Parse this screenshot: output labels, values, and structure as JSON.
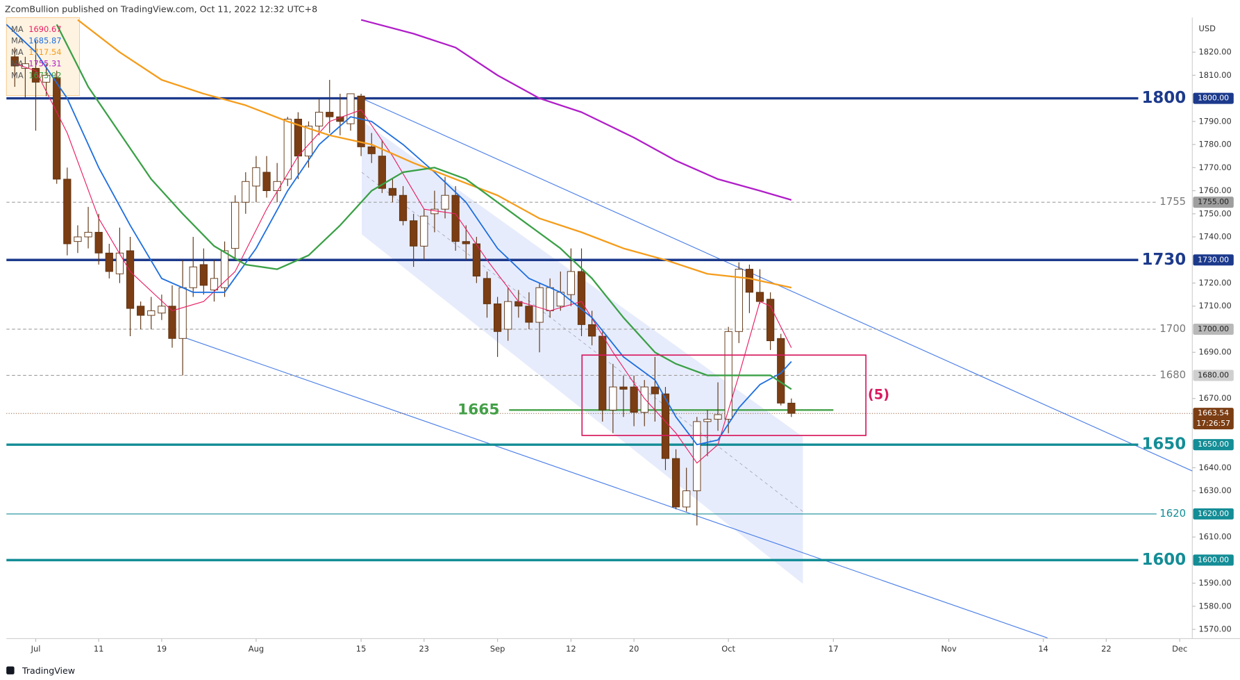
{
  "chart_data": {
    "type": "candlestick",
    "header": "ZcomBullion published on TradingView.com, Oct 11, 2022 12:32 UTC+8",
    "currency": "USD",
    "brand": "TradingView",
    "xlim": [
      -2.8,
      110.2
    ],
    "ylim": [
      1566,
      1835
    ],
    "xticks": [
      {
        "value": 0,
        "label": "Jul"
      },
      {
        "value": 6,
        "label": "11"
      },
      {
        "value": 12,
        "label": "19"
      },
      {
        "value": 21,
        "label": "Aug"
      },
      {
        "value": 31,
        "label": "15"
      },
      {
        "value": 37,
        "label": "23"
      },
      {
        "value": 44,
        "label": "Sep"
      },
      {
        "value": 51,
        "label": "12"
      },
      {
        "value": 57,
        "label": "20"
      },
      {
        "value": 66,
        "label": "Oct"
      },
      {
        "value": 76,
        "label": "17"
      },
      {
        "value": 87,
        "label": "Nov"
      },
      {
        "value": 96,
        "label": "14"
      },
      {
        "value": 102,
        "label": "22"
      },
      {
        "value": 109,
        "label": "Dec"
      }
    ],
    "yticks": [
      {
        "value": 1570,
        "label": "1570.00"
      },
      {
        "value": 1580,
        "label": "1580.00"
      },
      {
        "value": 1590,
        "label": "1590.00"
      },
      {
        "value": 1610,
        "label": "1610.00"
      },
      {
        "value": 1630,
        "label": "1630.00"
      },
      {
        "value": 1640,
        "label": "1640.00"
      },
      {
        "value": 1670,
        "label": "1670.00"
      },
      {
        "value": 1690,
        "label": "1690.00"
      },
      {
        "value": 1710,
        "label": "1710.00"
      },
      {
        "value": 1720,
        "label": "1720.00"
      },
      {
        "value": 1740,
        "label": "1740.00"
      },
      {
        "value": 1750,
        "label": "1750.00"
      },
      {
        "value": 1760,
        "label": "1760.00"
      },
      {
        "value": 1770,
        "label": "1770.00"
      },
      {
        "value": 1780,
        "label": "1780.00"
      },
      {
        "value": 1790,
        "label": "1790.00"
      },
      {
        "value": 1810,
        "label": "1810.00"
      },
      {
        "value": 1820,
        "label": "1820.00"
      }
    ],
    "up_color": "#ffffff",
    "down_color": "#7b3d13",
    "wick_color": "#5d3210",
    "candles": {
      "x": [
        -2,
        -1,
        0,
        1,
        2,
        3,
        4,
        5,
        6,
        7,
        8,
        9,
        10,
        11,
        12,
        13,
        14,
        15,
        16,
        17,
        18,
        19,
        20,
        21,
        22,
        23,
        24,
        25,
        26,
        27,
        28,
        29,
        30,
        31,
        32,
        33,
        34,
        35,
        36,
        37,
        38,
        39,
        40,
        41,
        42,
        43,
        44,
        45,
        46,
        47,
        48,
        49,
        50,
        51,
        52,
        53,
        54,
        55,
        56,
        57,
        58,
        59,
        60,
        61,
        62,
        63,
        64,
        65,
        66,
        67,
        68,
        69,
        70,
        71,
        72
      ],
      "open": [
        1818,
        1813,
        1813,
        1807,
        1809,
        1765,
        1738,
        1740,
        1742,
        1733,
        1724,
        1734,
        1710,
        1706,
        1707,
        1710,
        1696,
        1718,
        1728,
        1717,
        1718,
        1735,
        1755,
        1762,
        1768,
        1760,
        1765,
        1791,
        1775,
        1788,
        1794,
        1792,
        1789,
        1801,
        1779,
        1775,
        1761,
        1758,
        1747,
        1736,
        1750,
        1752,
        1758,
        1738,
        1737,
        1722,
        1711,
        1700,
        1712,
        1710,
        1703,
        1708,
        1710,
        1715,
        1725,
        1702,
        1697,
        1665,
        1675,
        1675,
        1664,
        1675,
        1672,
        1644,
        1623,
        1630,
        1660,
        1661,
        1661,
        1699,
        1726,
        1716,
        1713,
        1696,
        1668
      ],
      "high": [
        1822,
        1818,
        1825,
        1815,
        1812,
        1770,
        1745,
        1753,
        1750,
        1737,
        1744,
        1740,
        1712,
        1714,
        1715,
        1719,
        1730,
        1740,
        1735,
        1730,
        1738,
        1758,
        1768,
        1775,
        1775,
        1772,
        1792,
        1794,
        1790,
        1800,
        1808,
        1802,
        1802,
        1802,
        1785,
        1782,
        1765,
        1762,
        1750,
        1752,
        1760,
        1766,
        1762,
        1745,
        1740,
        1725,
        1714,
        1718,
        1717,
        1716,
        1720,
        1722,
        1725,
        1735,
        1735,
        1708,
        1699,
        1685,
        1680,
        1680,
        1678,
        1688,
        1675,
        1648,
        1640,
        1662,
        1665,
        1677,
        1701,
        1729,
        1728,
        1726,
        1716,
        1698,
        1670
      ],
      "low": [
        1805,
        1800,
        1786,
        1801,
        1763,
        1732,
        1733,
        1735,
        1728,
        1722,
        1720,
        1697,
        1700,
        1700,
        1704,
        1692,
        1680,
        1714,
        1715,
        1712,
        1714,
        1730,
        1750,
        1755,
        1757,
        1755,
        1762,
        1765,
        1770,
        1784,
        1785,
        1784,
        1786,
        1775,
        1772,
        1759,
        1755,
        1745,
        1727,
        1730,
        1742,
        1748,
        1734,
        1730,
        1720,
        1705,
        1688,
        1695,
        1705,
        1700,
        1690,
        1705,
        1708,
        1710,
        1697,
        1693,
        1660,
        1655,
        1662,
        1658,
        1658,
        1660,
        1639,
        1622,
        1621,
        1615,
        1645,
        1656,
        1655,
        1694,
        1707,
        1711,
        1691,
        1667,
        1662
      ],
      "close": [
        1814,
        1815,
        1807,
        1810,
        1765,
        1737,
        1740,
        1742,
        1733,
        1725,
        1733,
        1709,
        1706,
        1708,
        1710,
        1696,
        1718,
        1727,
        1719,
        1722,
        1734,
        1755,
        1764,
        1770,
        1760,
        1764,
        1791,
        1775,
        1788,
        1794,
        1792,
        1790,
        1802,
        1779,
        1776,
        1761,
        1758,
        1747,
        1736,
        1749,
        1752,
        1758,
        1738,
        1737,
        1723,
        1711,
        1699,
        1712,
        1710,
        1703,
        1718,
        1718,
        1716,
        1725,
        1702,
        1697,
        1665,
        1675,
        1674,
        1664,
        1675,
        1672,
        1644,
        1623,
        1630,
        1660,
        1661,
        1663,
        1699,
        1726,
        1716,
        1712,
        1695,
        1668,
        1663.54
      ]
    },
    "series": [
      {
        "name": "MA",
        "last": 1690.67,
        "color": "#e91e63",
        "width": 1,
        "x": [
          -2,
          0,
          3,
          6,
          9,
          13,
          16,
          19,
          22,
          25,
          28,
          31,
          34,
          37,
          40,
          43,
          46,
          49,
          52,
          55,
          58,
          61,
          63,
          65,
          67,
          69,
          70,
          72
        ],
        "values": [
          1815,
          1812,
          1785,
          1748,
          1725,
          1708,
          1712,
          1725,
          1752,
          1775,
          1790,
          1795,
          1775,
          1752,
          1750,
          1730,
          1712,
          1708,
          1712,
          1690,
          1670,
          1655,
          1642,
          1650,
          1680,
          1712,
          1710,
          1692
        ]
      },
      {
        "name": "MA",
        "last": 1685.87,
        "color": "#1e6fe0",
        "width": 1.6,
        "x": [
          -2.8,
          0,
          3,
          6,
          9,
          12,
          15,
          18,
          21,
          24,
          27,
          30,
          32,
          35,
          38,
          41,
          44,
          47,
          50,
          53,
          56,
          59,
          61,
          63,
          65,
          67,
          69,
          71,
          72
        ],
        "values": [
          1832,
          1820,
          1800,
          1770,
          1745,
          1722,
          1716,
          1716,
          1735,
          1760,
          1780,
          1792,
          1790,
          1780,
          1768,
          1755,
          1735,
          1722,
          1716,
          1705,
          1688,
          1678,
          1662,
          1650,
          1652,
          1666,
          1676,
          1681,
          1686
        ]
      },
      {
        "name": "MA",
        "last": 1717.54,
        "color": "#f59c1a",
        "width": 2,
        "x": [
          4,
          8,
          12,
          16,
          20,
          24,
          28,
          32,
          36,
          40,
          44,
          48,
          52,
          56,
          60,
          64,
          68,
          72
        ],
        "values": [
          1834,
          1820,
          1808,
          1802,
          1797,
          1790,
          1784,
          1780,
          1772,
          1765,
          1758,
          1748,
          1742,
          1735,
          1730,
          1724,
          1722,
          1718
        ]
      },
      {
        "name": "MA",
        "last": 1755.31,
        "color": "#b01ec8",
        "width": 2,
        "x": [
          31,
          36,
          40,
          44,
          48,
          52,
          57,
          61,
          65,
          69,
          72
        ],
        "values": [
          1834,
          1828,
          1822,
          1810,
          1800,
          1794,
          1783,
          1773,
          1765,
          1760,
          1756
        ]
      },
      {
        "name": "MA",
        "last": 1673.92,
        "color": "#3aa046",
        "width": 2,
        "x": [
          2,
          5,
          8,
          11,
          14,
          17,
          20,
          23,
          26,
          29,
          32,
          35,
          38,
          41,
          44,
          47,
          50,
          53,
          56,
          59,
          61,
          64,
          67,
          70,
          72
        ],
        "values": [
          1832,
          1805,
          1785,
          1765,
          1750,
          1736,
          1728,
          1726,
          1732,
          1745,
          1760,
          1768,
          1770,
          1765,
          1755,
          1745,
          1735,
          1722,
          1705,
          1690,
          1685,
          1680,
          1680,
          1680,
          1674
        ]
      }
    ],
    "levels": [
      {
        "value": 1800,
        "badge": "1800.00",
        "color": "#1c3a8c",
        "width": 3,
        "dashed": false,
        "emphasis": true,
        "badge_color": "#1c3a8c",
        "badge_text": "#ffffff"
      },
      {
        "value": 1755,
        "badge": "1755.00",
        "color": "#9e9e9e",
        "width": 1,
        "dashed": true,
        "emphasis": false,
        "badge_color": "#9e9e9e",
        "badge_text": "#222222"
      },
      {
        "value": 1730,
        "badge": "1730.00",
        "color": "#1c3a8c",
        "width": 3,
        "dashed": false,
        "emphasis": true,
        "badge_color": "#1c3a8c",
        "badge_text": "#ffffff"
      },
      {
        "value": 1700,
        "badge": "1700.00",
        "color": "#9e9e9e",
        "width": 1,
        "dashed": true,
        "emphasis": false,
        "badge_color": "#b8b8b8",
        "badge_text": "#222222"
      },
      {
        "value": 1680,
        "badge": "1680.00",
        "color": "#9e9e9e",
        "width": 1,
        "dashed": true,
        "emphasis": false,
        "badge_color": "#cfcfcf",
        "badge_text": "#222222"
      },
      {
        "value": 1650,
        "badge": "1650.00",
        "color": "#138d96",
        "width": 3,
        "dashed": false,
        "emphasis": true,
        "badge_color": "#138d96",
        "badge_text": "#ffffff"
      },
      {
        "value": 1620,
        "badge": "1620.00",
        "color": "#138d96",
        "width": 1,
        "dashed": false,
        "emphasis": false,
        "badge_color": "#138d96",
        "badge_text": "#ffffff"
      },
      {
        "value": 1600,
        "badge": "1600.00",
        "color": "#138d96",
        "width": 3,
        "dashed": false,
        "emphasis": true,
        "badge_color": "#138d96",
        "badge_text": "#ffffff"
      }
    ],
    "support": {
      "value": 1665,
      "x": [
        45.1,
        76
      ],
      "color": "#43a047"
    },
    "trend_lines": [
      {
        "x1": 31.06,
        "y1": 1800,
        "x2": 110.2,
        "y2": 1638.6
      },
      {
        "x1": 14.17,
        "y1": 1696.4,
        "x2": 96.4,
        "y2": 1566.3
      }
    ],
    "channel": {
      "x": [
        31.06,
        73.1
      ],
      "upper": [
        1790.4,
        1653.4
      ],
      "lower": [
        1741.1,
        1589.7
      ],
      "middle": [
        1768,
        1621
      ]
    },
    "box": {
      "x1": 52.05,
      "x2": 79.1,
      "top": 1688.8,
      "bottom": 1654,
      "label": "(5)",
      "color": "#d81b60"
    },
    "last_price": {
      "value": 1663.54,
      "countdown": "17:26:57",
      "color": "#7b3d13"
    }
  }
}
